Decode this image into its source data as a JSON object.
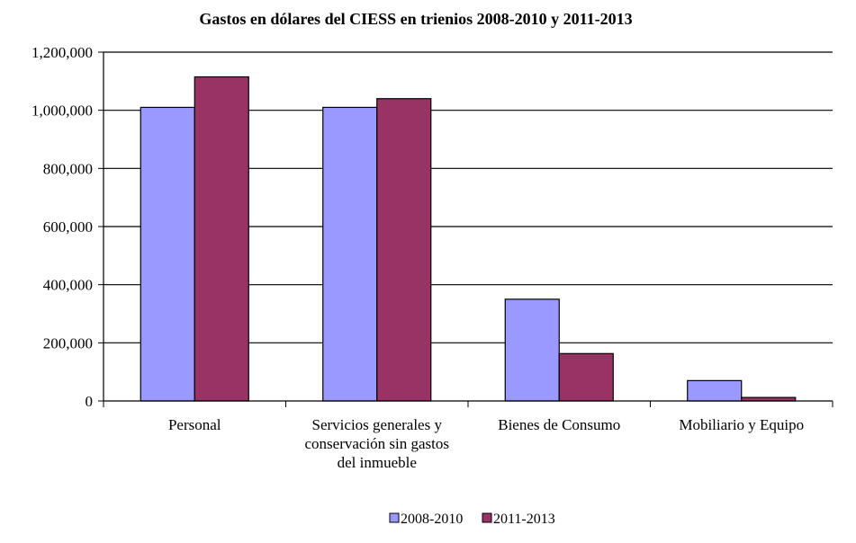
{
  "chart_data": {
    "type": "bar",
    "title": "Gastos en dólares del CIESS en trienios 2008-2010 y 2011-2013",
    "xlabel": "",
    "ylabel": "",
    "categories": [
      [
        "Personal"
      ],
      [
        "Servicios generales y",
        "conservación sin gastos",
        "del inmueble"
      ],
      [
        "Bienes de Consumo"
      ],
      [
        "Mobiliario y Equipo"
      ]
    ],
    "series": [
      {
        "name": "2008-2010",
        "color": "#9999ff",
        "values": [
          1010000,
          1010000,
          350000,
          70000
        ]
      },
      {
        "name": "2011-2013",
        "color": "#993366",
        "values": [
          1115000,
          1040000,
          163000,
          12000
        ]
      }
    ],
    "ylim": [
      0,
      1200000
    ],
    "yticks": [
      0,
      200000,
      400000,
      600000,
      800000,
      1000000,
      1200000
    ],
    "ytick_labels": [
      "0",
      "200,000",
      "400,000",
      "600,000",
      "800,000",
      "1,000,000",
      "1,200,000"
    ],
    "grid": true,
    "legend_position": "bottom"
  }
}
